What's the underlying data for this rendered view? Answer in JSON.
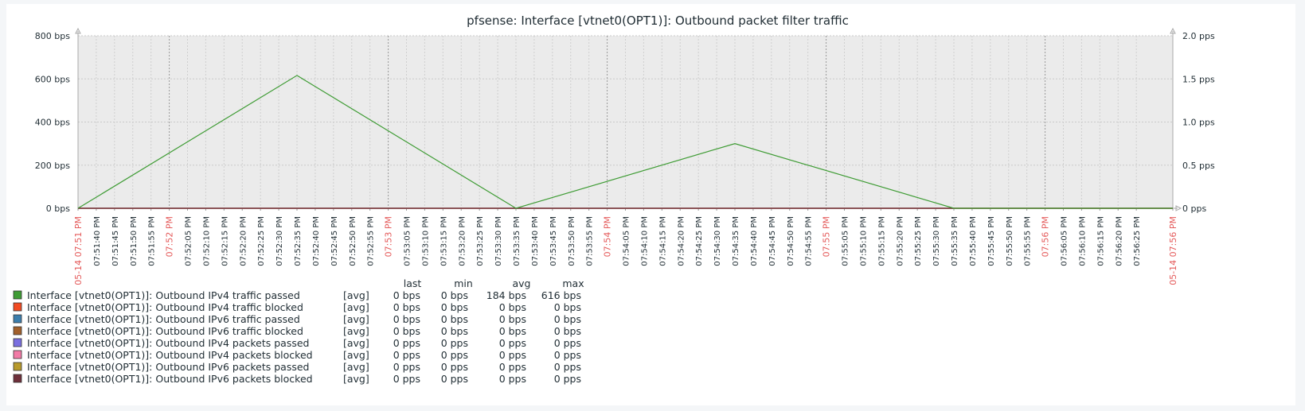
{
  "chart_data": {
    "type": "line",
    "title": "pfsense: Interface [vtnet0(OPT1)]: Outbound packet filter traffic",
    "y_left": {
      "ticks": [
        "0 bps",
        "200 bps",
        "400 bps",
        "600 bps",
        "800 bps"
      ],
      "min": 0,
      "max": 800,
      "unit": "bps"
    },
    "y_right": {
      "ticks": [
        "0 pps",
        "0.5 pps",
        "1.0 pps",
        "1.5 pps",
        "2.0 pps"
      ],
      "min": 0,
      "max": 2.0,
      "unit": "pps"
    },
    "x_labels": [
      "05-14 07:51 PM",
      "07:51:40 PM",
      "07:51:45 PM",
      "07:51:50 PM",
      "07:51:55 PM",
      "07:52 PM",
      "07:52:05 PM",
      "07:52:10 PM",
      "07:52:15 PM",
      "07:52:20 PM",
      "07:52:25 PM",
      "07:52:30 PM",
      "07:52:35 PM",
      "07:52:40 PM",
      "07:52:45 PM",
      "07:52:50 PM",
      "07:52:55 PM",
      "07:53 PM",
      "07:53:05 PM",
      "07:53:10 PM",
      "07:53:15 PM",
      "07:53:20 PM",
      "07:53:25 PM",
      "07:53:30 PM",
      "07:53:35 PM",
      "07:53:40 PM",
      "07:53:45 PM",
      "07:53:50 PM",
      "07:53:55 PM",
      "07:54 PM",
      "07:54:05 PM",
      "07:54:10 PM",
      "07:54:15 PM",
      "07:54:20 PM",
      "07:54:25 PM",
      "07:54:30 PM",
      "07:54:35 PM",
      "07:54:40 PM",
      "07:54:45 PM",
      "07:54:50 PM",
      "07:54:55 PM",
      "07:55 PM",
      "07:55:05 PM",
      "07:55:10 PM",
      "07:55:15 PM",
      "07:55:20 PM",
      "07:55:25 PM",
      "07:55:30 PM",
      "07:55:35 PM",
      "07:55:40 PM",
      "07:55:45 PM",
      "07:55:50 PM",
      "07:55:55 PM",
      "07:56 PM",
      "07:56:05 PM",
      "07:56:10 PM",
      "07:56:15 PM",
      "07:56:20 PM",
      "07:56:25 PM",
      "05-14 07:56 PM"
    ],
    "x_label_seconds": [
      0,
      5,
      10,
      15,
      20,
      25,
      30,
      35,
      40,
      45,
      50,
      55,
      60,
      65,
      70,
      75,
      80,
      85,
      90,
      95,
      100,
      105,
      110,
      115,
      120,
      125,
      130,
      135,
      140,
      145,
      150,
      155,
      160,
      165,
      170,
      175,
      180,
      185,
      190,
      195,
      200,
      205,
      210,
      215,
      220,
      225,
      230,
      235,
      240,
      245,
      250,
      255,
      260,
      265,
      270,
      275,
      280,
      285,
      290,
      300
    ],
    "x_major_labels": [
      "05-14 07:51 PM",
      "07:52 PM",
      "07:53 PM",
      "07:54 PM",
      "07:55 PM",
      "07:56 PM",
      "05-14 07:56 PM"
    ],
    "x_range_seconds": [
      0,
      300
    ],
    "grid": true,
    "legend_columns": [
      "last",
      "min",
      "avg",
      "max"
    ],
    "series": [
      {
        "name": "Interface [vtnet0(OPT1)]: Outbound IPv4 traffic passed",
        "func": "[avg]",
        "last": "0 bps",
        "min": "0 bps",
        "avg": "184 bps",
        "max": "616 bps",
        "color": "#3f9c35",
        "axis": "left",
        "x_seconds": [
          0,
          60,
          120,
          180,
          240,
          300
        ],
        "y": [
          0,
          616,
          0,
          300,
          0,
          0
        ]
      },
      {
        "name": "Interface [vtnet0(OPT1)]: Outbound IPv4 traffic blocked",
        "func": "[avg]",
        "last": "0 bps",
        "min": "0 bps",
        "avg": "0 bps",
        "max": "0 bps",
        "color": "#f24b22",
        "axis": "left"
      },
      {
        "name": "Interface [vtnet0(OPT1)]: Outbound IPv6 traffic passed",
        "func": "[avg]",
        "last": "0 bps",
        "min": "0 bps",
        "avg": "0 bps",
        "max": "0 bps",
        "color": "#3c7ead",
        "axis": "left"
      },
      {
        "name": "Interface [vtnet0(OPT1)]: Outbound IPv6 traffic blocked",
        "func": "[avg]",
        "last": "0 bps",
        "min": "0 bps",
        "avg": "0 bps",
        "max": "0 bps",
        "color": "#a2602b",
        "axis": "left"
      },
      {
        "name": "Interface [vtnet0(OPT1)]: Outbound IPv4 packets passed",
        "func": "[avg]",
        "last": "0 pps",
        "min": "0 pps",
        "avg": "0 pps",
        "max": "0 pps",
        "color": "#7a6fe0",
        "axis": "right"
      },
      {
        "name": "Interface [vtnet0(OPT1)]: Outbound IPv4 packets blocked",
        "func": "[avg]",
        "last": "0 pps",
        "min": "0 pps",
        "avg": "0 pps",
        "max": "0 pps",
        "color": "#f27ba6",
        "axis": "right"
      },
      {
        "name": "Interface [vtnet0(OPT1)]: Outbound IPv6 packets passed",
        "func": "[avg]",
        "last": "0 pps",
        "min": "0 pps",
        "avg": "0 pps",
        "max": "0 pps",
        "color": "#b89a2b",
        "axis": "right"
      },
      {
        "name": "Interface [vtnet0(OPT1)]: Outbound IPv6 packets blocked",
        "func": "[avg]",
        "last": "0 pps",
        "min": "0 pps",
        "avg": "0 pps",
        "max": "0 pps",
        "color": "#6e2f3a",
        "axis": "right"
      }
    ]
  }
}
